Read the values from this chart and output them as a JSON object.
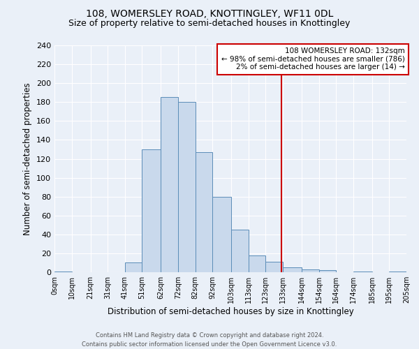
{
  "title": "108, WOMERSLEY ROAD, KNOTTINGLEY, WF11 0DL",
  "subtitle": "Size of property relative to semi-detached houses in Knottingley",
  "xlabel": "Distribution of semi-detached houses by size in Knottingley",
  "ylabel": "Number of semi-detached properties",
  "bin_edges": [
    0,
    10,
    21,
    31,
    41,
    51,
    62,
    72,
    82,
    92,
    103,
    113,
    123,
    133,
    144,
    154,
    164,
    174,
    185,
    195,
    205
  ],
  "bin_labels": [
    "0sqm",
    "10sqm",
    "21sqm",
    "31sqm",
    "41sqm",
    "51sqm",
    "62sqm",
    "72sqm",
    "82sqm",
    "92sqm",
    "103sqm",
    "113sqm",
    "123sqm",
    "133sqm",
    "144sqm",
    "154sqm",
    "164sqm",
    "174sqm",
    "185sqm",
    "195sqm",
    "205sqm"
  ],
  "counts": [
    1,
    0,
    0,
    0,
    10,
    130,
    185,
    180,
    127,
    80,
    45,
    18,
    11,
    5,
    3,
    2,
    0,
    1,
    0,
    1
  ],
  "bar_facecolor": "#c9d9ec",
  "bar_edgecolor": "#5b8db8",
  "vline_x": 132,
  "vline_color": "#cc0000",
  "annotation_title": "108 WOMERSLEY ROAD: 132sqm",
  "annotation_line1": "← 98% of semi-detached houses are smaller (786)",
  "annotation_line2": "2% of semi-detached houses are larger (14) →",
  "annotation_box_color": "#cc0000",
  "ylim": [
    0,
    240
  ],
  "yticks": [
    0,
    20,
    40,
    60,
    80,
    100,
    120,
    140,
    160,
    180,
    200,
    220,
    240
  ],
  "background_color": "#eaf0f8",
  "footer": "Contains HM Land Registry data © Crown copyright and database right 2024.\nContains public sector information licensed under the Open Government Licence v3.0.",
  "title_fontsize": 10,
  "subtitle_fontsize": 9,
  "xlabel_fontsize": 8.5,
  "ylabel_fontsize": 8.5
}
